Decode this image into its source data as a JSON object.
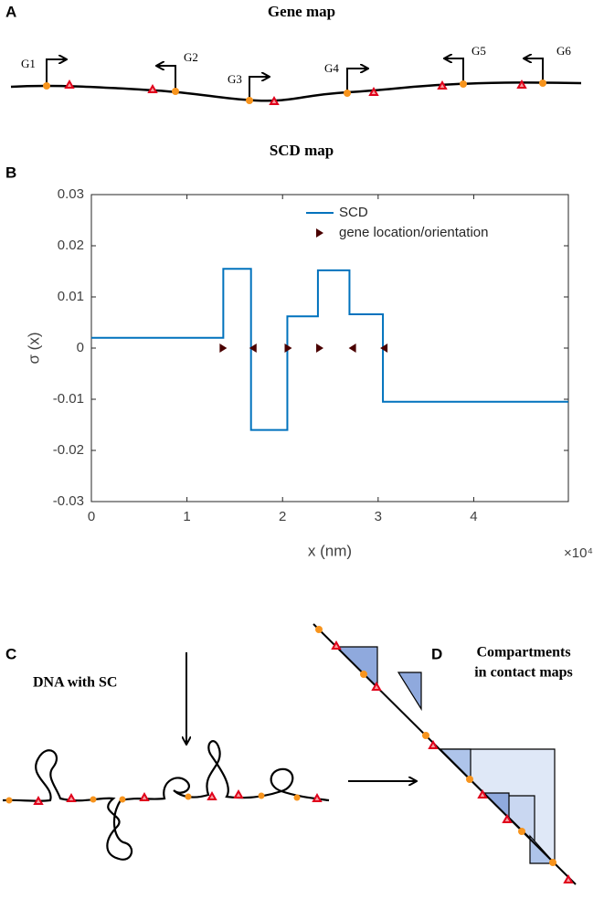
{
  "panel_labels": [
    "A",
    "B",
    "C",
    "D"
  ],
  "gene_map": {
    "title": "Gene map",
    "genes": [
      "G1",
      "G2",
      "G3",
      "G4",
      "G5",
      "G6"
    ]
  },
  "panel_c": {
    "title": "DNA with SC"
  },
  "panel_d": {
    "title_lines": [
      "Compartments",
      "in contact maps"
    ]
  },
  "chart_data": {
    "type": "line",
    "title": "SCD map",
    "x_label": "x (nm)",
    "y_label": "σ (x)",
    "x_scale_label": "×10⁴",
    "xlim": [
      0,
      4.99
    ],
    "xticks": [
      0,
      1,
      2,
      3,
      4
    ],
    "ylim": [
      -0.03,
      0.03
    ],
    "yticks": [
      -0.03,
      -0.02,
      -0.01,
      0,
      0.01,
      0.02,
      0.03
    ],
    "legend": "upper right",
    "series": [
      {
        "name": "SCD",
        "type": "line",
        "color": "#0072bd",
        "x": [
          0,
          1.38,
          1.38,
          1.67,
          1.67,
          2.05,
          2.05,
          2.37,
          2.37,
          2.7,
          2.7,
          3.05,
          3.05,
          4.99
        ],
        "values": [
          0.002,
          0.002,
          0.0155,
          0.0155,
          -0.016,
          -0.016,
          0.0062,
          0.0062,
          0.0152,
          0.0152,
          0.0066,
          0.0066,
          -0.0105,
          -0.0105
        ]
      },
      {
        "name": "gene location/orientation",
        "type": "scatter",
        "color": "#4a0000",
        "x": [
          1.38,
          1.69,
          2.06,
          2.39,
          2.73,
          3.06
        ],
        "values": [
          0,
          0,
          0,
          0,
          0,
          0
        ],
        "markers": [
          "right",
          "left",
          "right",
          "right",
          "left",
          "left"
        ]
      }
    ]
  }
}
